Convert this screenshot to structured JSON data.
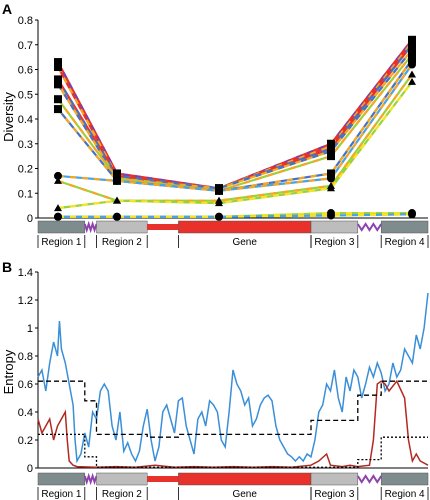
{
  "chart_data": [
    {
      "type": "line",
      "panel_label": "A",
      "ylabel": "Diversity",
      "ylim": [
        0,
        0.8
      ],
      "yticks": [
        "0.8",
        "0.7",
        "0.6",
        "0.5",
        "0.4",
        "0.3",
        "0.2",
        "0.1",
        "0"
      ],
      "x": [
        "Region 1",
        "Region 2",
        "Gene",
        "Region 3",
        "Region 4"
      ],
      "series": [
        {
          "values": [
            0.63,
            0.18,
            0.12,
            0.3,
            0.72
          ],
          "color": "#e8312a",
          "dash": "#7b3fb0",
          "marker": "square"
        },
        {
          "values": [
            0.61,
            0.17,
            0.12,
            0.29,
            0.71
          ],
          "color": "#e8312a",
          "dash": "#f6a623",
          "marker": "square"
        },
        {
          "values": [
            0.56,
            0.17,
            0.12,
            0.28,
            0.7
          ],
          "color": "#e8312a",
          "dash": "#4472c4",
          "marker": "square"
        },
        {
          "values": [
            0.54,
            0.16,
            0.12,
            0.27,
            0.68
          ],
          "color": "#f6a623",
          "dash": "#4472c4",
          "marker": "square"
        },
        {
          "values": [
            0.48,
            0.16,
            0.11,
            0.25,
            0.66
          ],
          "color": "#9bd13a",
          "dash": "#f6a623",
          "marker": "square"
        },
        {
          "values": [
            0.44,
            0.15,
            0.11,
            0.18,
            0.64
          ],
          "color": "#4472c4",
          "dash": "#f6a623",
          "marker": "square"
        },
        {
          "values": [
            0.17,
            0.15,
            0.11,
            0.16,
            0.62
          ],
          "color": "#4aa3df",
          "dash": "#f6a623",
          "marker": "circle"
        },
        {
          "values": [
            0.15,
            0.07,
            0.07,
            0.13,
            0.58
          ],
          "color": "#9bd13a",
          "dash": "#f6a623",
          "marker": "triangle"
        },
        {
          "values": [
            0.04,
            0.07,
            0.06,
            0.12,
            0.55
          ],
          "color": "#9bd13a",
          "dash": "#f6e523",
          "marker": "triangle"
        },
        {
          "values": [
            0.005,
            0.005,
            0.005,
            0.02,
            0.02
          ],
          "color": "#9bd13a",
          "dash": "#f6e523",
          "marker": "circle"
        },
        {
          "values": [
            0.005,
            0.005,
            0.005,
            0.01,
            0.015
          ],
          "color": "#4aa3df",
          "dash": "#f6e523",
          "marker": "circle"
        }
      ],
      "regions": [
        {
          "label": "Region 1",
          "start": 0.0,
          "end": 0.12,
          "color": "#7f8c8d"
        },
        {
          "label": "",
          "start": 0.12,
          "end": 0.15,
          "color": "#8e44ad",
          "type": "zigzag"
        },
        {
          "label": "Region 2",
          "start": 0.15,
          "end": 0.28,
          "color": "#bdbdbd"
        },
        {
          "label": "",
          "start": 0.28,
          "end": 0.36,
          "color": "#e8312a",
          "type": "thin"
        },
        {
          "label": "Gene",
          "start": 0.36,
          "end": 0.7,
          "color": "#e8312a"
        },
        {
          "label": "Region 3",
          "start": 0.7,
          "end": 0.82,
          "color": "#bdbdbd"
        },
        {
          "label": "",
          "start": 0.82,
          "end": 0.88,
          "color": "#8e44ad",
          "type": "zigzag"
        },
        {
          "label": "Region 4",
          "start": 0.88,
          "end": 1.0,
          "color": "#7f8c8d"
        }
      ]
    },
    {
      "type": "line",
      "panel_label": "B",
      "ylabel": "Entropy",
      "ylim": [
        0,
        1.4
      ],
      "yticks": [
        "1.4",
        "1.2",
        "1",
        "0.8",
        "0.6",
        "0.4",
        "0.2",
        "0"
      ],
      "series": [
        {
          "color": "#3b8fd8",
          "points": [
            [
              0,
              0.65
            ],
            [
              0.01,
              0.7
            ],
            [
              0.02,
              0.55
            ],
            [
              0.03,
              0.75
            ],
            [
              0.04,
              0.9
            ],
            [
              0.05,
              0.8
            ],
            [
              0.055,
              1.05
            ],
            [
              0.06,
              0.85
            ],
            [
              0.07,
              0.75
            ],
            [
              0.08,
              0.6
            ],
            [
              0.09,
              0.45
            ],
            [
              0.095,
              0.2
            ],
            [
              0.1,
              0.05
            ],
            [
              0.11,
              0.1
            ],
            [
              0.12,
              0.25
            ],
            [
              0.13,
              0.15
            ],
            [
              0.14,
              0.4
            ],
            [
              0.15,
              0.35
            ],
            [
              0.16,
              0.55
            ],
            [
              0.17,
              0.6
            ],
            [
              0.18,
              0.55
            ],
            [
              0.19,
              0.3
            ],
            [
              0.2,
              0.2
            ],
            [
              0.21,
              0.4
            ],
            [
              0.22,
              0.12
            ],
            [
              0.23,
              0.18
            ],
            [
              0.24,
              0.1
            ],
            [
              0.25,
              0.05
            ],
            [
              0.26,
              0.12
            ],
            [
              0.27,
              0.3
            ],
            [
              0.28,
              0.42
            ],
            [
              0.29,
              0.2
            ],
            [
              0.3,
              0.05
            ],
            [
              0.31,
              0.15
            ],
            [
              0.32,
              0.4
            ],
            [
              0.33,
              0.45
            ],
            [
              0.34,
              0.35
            ],
            [
              0.35,
              0.25
            ],
            [
              0.36,
              0.48
            ],
            [
              0.37,
              0.5
            ],
            [
              0.38,
              0.3
            ],
            [
              0.39,
              0.2
            ],
            [
              0.4,
              0.1
            ],
            [
              0.41,
              0.35
            ],
            [
              0.42,
              0.4
            ],
            [
              0.43,
              0.3
            ],
            [
              0.44,
              0.48
            ],
            [
              0.45,
              0.45
            ],
            [
              0.46,
              0.4
            ],
            [
              0.47,
              0.2
            ],
            [
              0.48,
              0.15
            ],
            [
              0.49,
              0.4
            ],
            [
              0.5,
              0.7
            ],
            [
              0.51,
              0.6
            ],
            [
              0.52,
              0.55
            ],
            [
              0.53,
              0.45
            ],
            [
              0.54,
              0.5
            ],
            [
              0.55,
              0.3
            ],
            [
              0.56,
              0.35
            ],
            [
              0.57,
              0.45
            ],
            [
              0.58,
              0.5
            ],
            [
              0.59,
              0.52
            ],
            [
              0.6,
              0.48
            ],
            [
              0.61,
              0.3
            ],
            [
              0.62,
              0.2
            ],
            [
              0.63,
              0.15
            ],
            [
              0.64,
              0.1
            ],
            [
              0.65,
              0.08
            ],
            [
              0.66,
              0.05
            ],
            [
              0.67,
              0.08
            ],
            [
              0.68,
              0.05
            ],
            [
              0.69,
              0.1
            ],
            [
              0.7,
              0.08
            ],
            [
              0.71,
              0.2
            ],
            [
              0.72,
              0.4
            ],
            [
              0.73,
              0.45
            ],
            [
              0.74,
              0.6
            ],
            [
              0.75,
              0.55
            ],
            [
              0.76,
              0.7
            ],
            [
              0.77,
              0.5
            ],
            [
              0.78,
              0.4
            ],
            [
              0.79,
              0.65
            ],
            [
              0.8,
              0.55
            ],
            [
              0.81,
              0.7
            ],
            [
              0.82,
              0.65
            ],
            [
              0.83,
              0.5
            ],
            [
              0.84,
              0.6
            ],
            [
              0.85,
              0.72
            ],
            [
              0.86,
              0.65
            ],
            [
              0.87,
              0.75
            ],
            [
              0.88,
              0.68
            ],
            [
              0.89,
              0.55
            ],
            [
              0.9,
              0.6
            ],
            [
              0.91,
              0.75
            ],
            [
              0.92,
              0.65
            ],
            [
              0.93,
              0.7
            ],
            [
              0.94,
              0.85
            ],
            [
              0.95,
              0.8
            ],
            [
              0.96,
              0.75
            ],
            [
              0.97,
              0.95
            ],
            [
              0.98,
              0.85
            ],
            [
              0.99,
              1.0
            ],
            [
              1.0,
              1.25
            ]
          ]
        },
        {
          "color": "#b22a22",
          "points": [
            [
              0,
              0.35
            ],
            [
              0.01,
              0.25
            ],
            [
              0.02,
              0.3
            ],
            [
              0.03,
              0.35
            ],
            [
              0.04,
              0.2
            ],
            [
              0.05,
              0.3
            ],
            [
              0.06,
              0.35
            ],
            [
              0.07,
              0.4
            ],
            [
              0.075,
              0.2
            ],
            [
              0.08,
              0.05
            ],
            [
              0.09,
              0.02
            ],
            [
              0.1,
              0.01
            ],
            [
              0.15,
              0.005
            ],
            [
              0.2,
              0.01
            ],
            [
              0.25,
              0.005
            ],
            [
              0.3,
              0.02
            ],
            [
              0.35,
              0.005
            ],
            [
              0.4,
              0.01
            ],
            [
              0.45,
              0.005
            ],
            [
              0.5,
              0.01
            ],
            [
              0.55,
              0.005
            ],
            [
              0.6,
              0.01
            ],
            [
              0.65,
              0.005
            ],
            [
              0.7,
              0.02
            ],
            [
              0.72,
              0.05
            ],
            [
              0.74,
              0.1
            ],
            [
              0.75,
              0.02
            ],
            [
              0.78,
              0.01
            ],
            [
              0.8,
              0.02
            ],
            [
              0.82,
              0.01
            ],
            [
              0.85,
              0.02
            ],
            [
              0.86,
              0.2
            ],
            [
              0.87,
              0.6
            ],
            [
              0.88,
              0.62
            ],
            [
              0.89,
              0.6
            ],
            [
              0.9,
              0.55
            ],
            [
              0.92,
              0.62
            ],
            [
              0.94,
              0.5
            ],
            [
              0.95,
              0.2
            ],
            [
              0.96,
              0.05
            ],
            [
              0.97,
              0.1
            ],
            [
              0.98,
              0.05
            ],
            [
              1.0,
              0.02
            ]
          ]
        },
        {
          "color": "#000000",
          "style": "dashed",
          "points": [
            [
              0,
              0.62
            ],
            [
              0.12,
              0.62
            ],
            [
              0.12,
              0.48
            ],
            [
              0.15,
              0.48
            ],
            [
              0.15,
              0.24
            ],
            [
              0.28,
              0.24
            ],
            [
              0.28,
              0.22
            ],
            [
              0.36,
              0.22
            ],
            [
              0.36,
              0.24
            ],
            [
              0.7,
              0.24
            ],
            [
              0.7,
              0.34
            ],
            [
              0.82,
              0.34
            ],
            [
              0.82,
              0.52
            ],
            [
              0.88,
              0.52
            ],
            [
              0.88,
              0.62
            ],
            [
              1.0,
              0.62
            ]
          ]
        },
        {
          "color": "#000000",
          "style": "dotted",
          "points": [
            [
              0,
              0.24
            ],
            [
              0.12,
              0.24
            ],
            [
              0.12,
              0.08
            ],
            [
              0.15,
              0.08
            ],
            [
              0.15,
              0.005
            ],
            [
              0.82,
              0.005
            ],
            [
              0.82,
              0.06
            ],
            [
              0.88,
              0.06
            ],
            [
              0.88,
              0.22
            ],
            [
              1.0,
              0.22
            ]
          ]
        }
      ],
      "regions": [
        {
          "label": "Region 1",
          "start": 0.0,
          "end": 0.12,
          "color": "#7f8c8d"
        },
        {
          "label": "",
          "start": 0.12,
          "end": 0.15,
          "color": "#8e44ad",
          "type": "zigzag"
        },
        {
          "label": "Region 2",
          "start": 0.15,
          "end": 0.28,
          "color": "#bdbdbd"
        },
        {
          "label": "",
          "start": 0.28,
          "end": 0.36,
          "color": "#e8312a",
          "type": "thin"
        },
        {
          "label": "Gene",
          "start": 0.36,
          "end": 0.7,
          "color": "#e8312a"
        },
        {
          "label": "Region 3",
          "start": 0.7,
          "end": 0.82,
          "color": "#bdbdbd"
        },
        {
          "label": "",
          "start": 0.82,
          "end": 0.88,
          "color": "#8e44ad",
          "type": "zigzag"
        },
        {
          "label": "Region 4",
          "start": 0.88,
          "end": 1.0,
          "color": "#7f8c8d"
        }
      ]
    }
  ]
}
